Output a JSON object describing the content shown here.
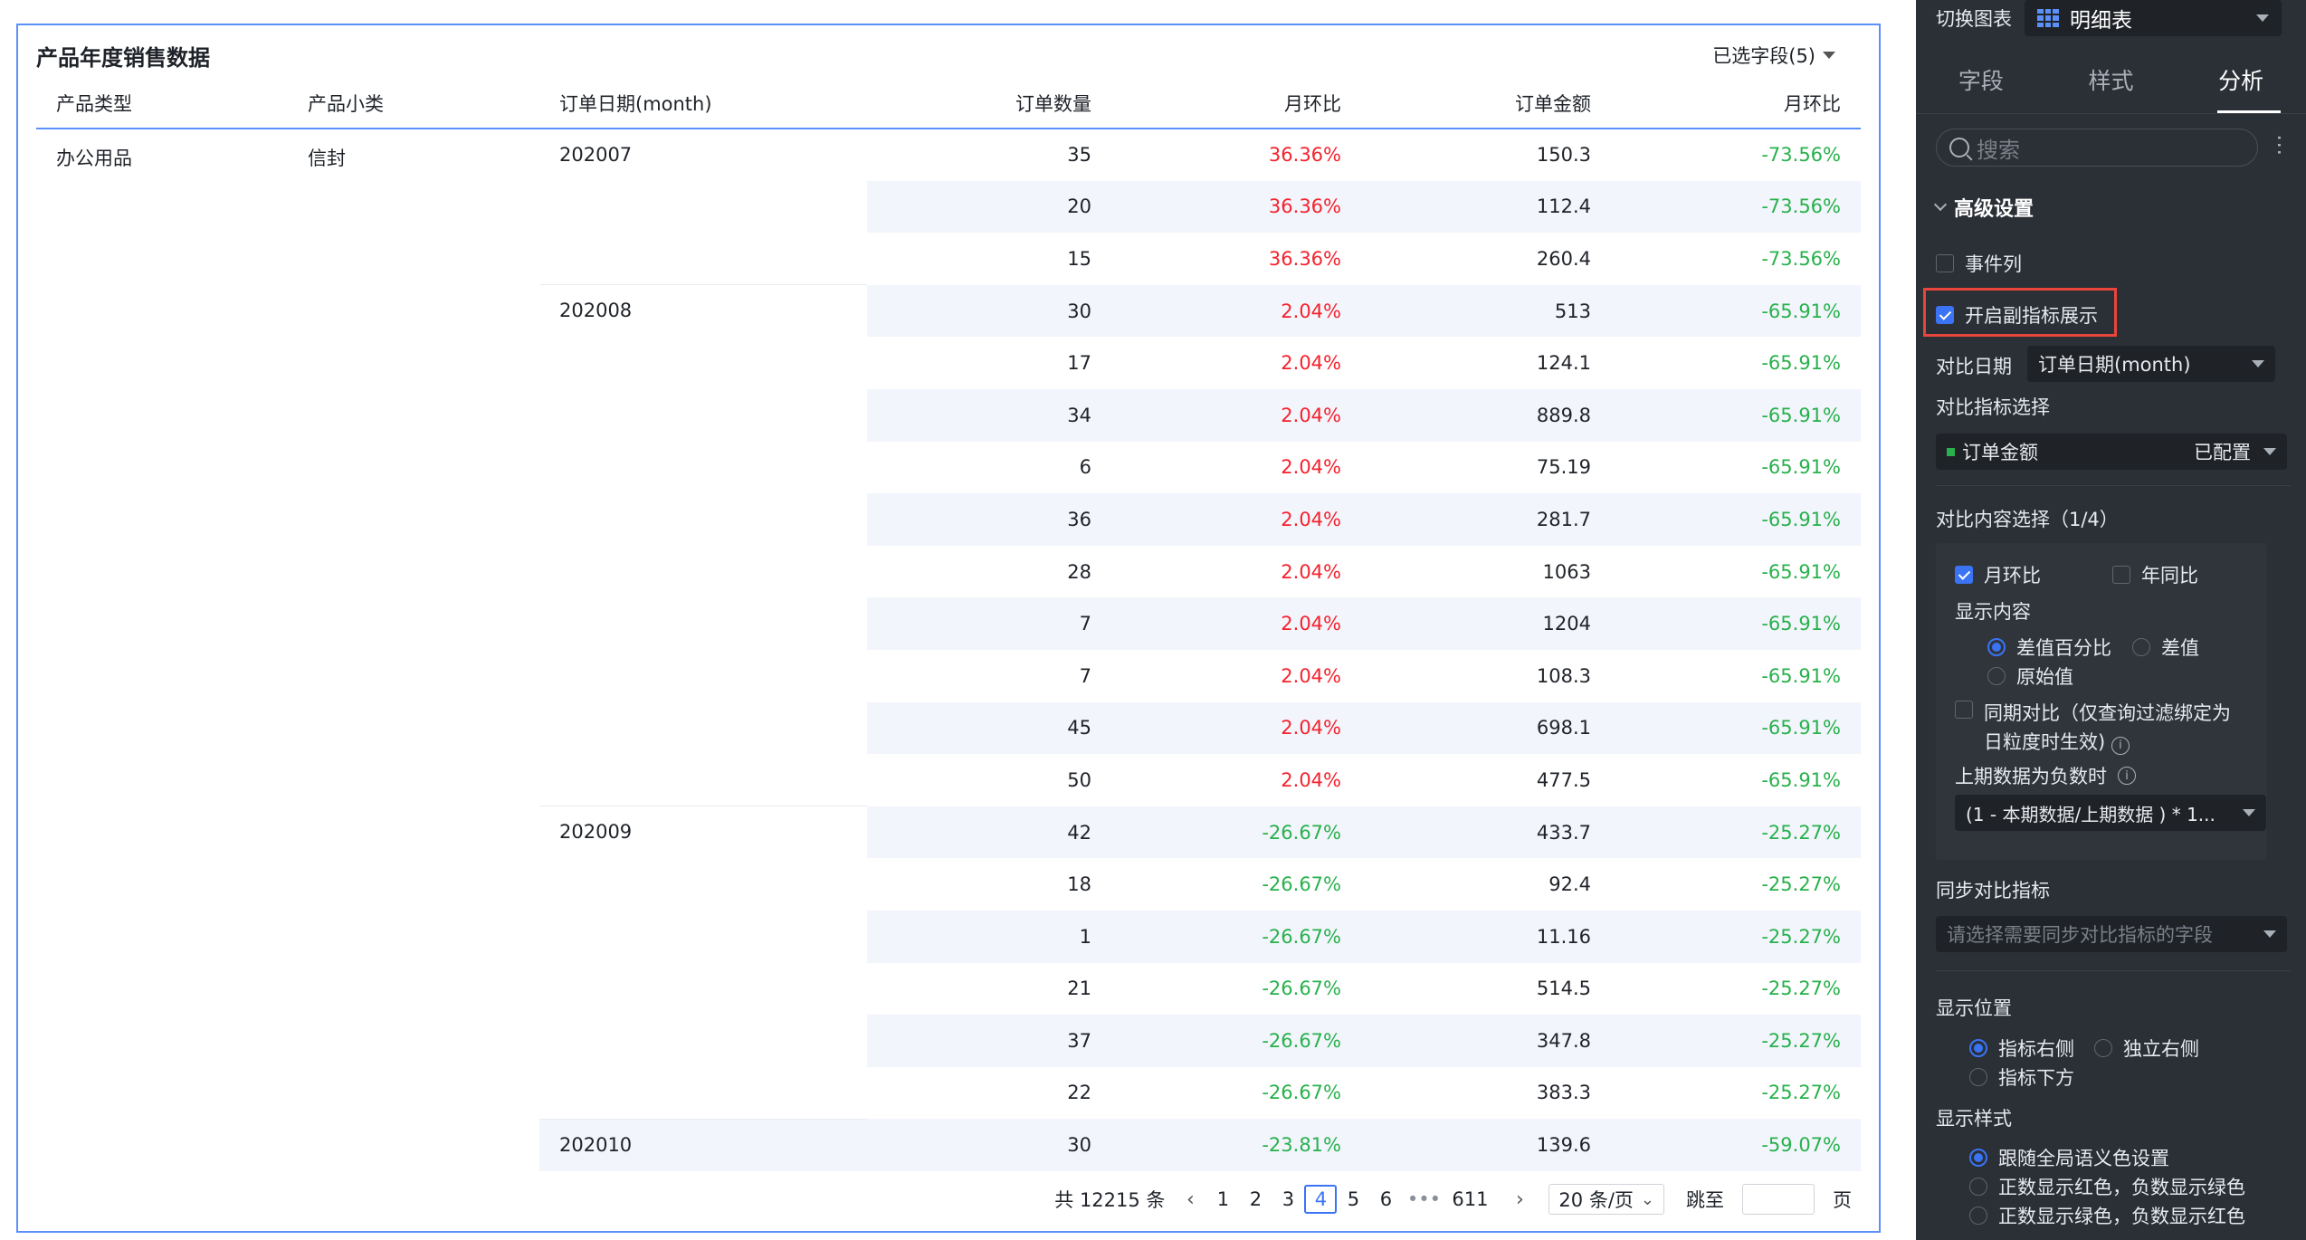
{
  "report": {
    "title": "产品年度销售数据",
    "field_select": "已选字段(5)",
    "columns": [
      "产品类型",
      "产品小类",
      "订单日期(month)",
      "订单数量",
      "月环比",
      "订单金额",
      "月环比"
    ],
    "group": {
      "type": "办公用品",
      "subtype": "信封"
    },
    "months": [
      "202007",
      "202008",
      "202009",
      "202010"
    ],
    "rows": [
      {
        "qty": "35",
        "mom1": "36.36%",
        "amt": "150.3",
        "mom2": "-73.56%"
      },
      {
        "qty": "20",
        "mom1": "36.36%",
        "amt": "112.4",
        "mom2": "-73.56%"
      },
      {
        "qty": "15",
        "mom1": "36.36%",
        "amt": "260.4",
        "mom2": "-73.56%"
      },
      {
        "qty": "30",
        "mom1": "2.04%",
        "amt": "513",
        "mom2": "-65.91%"
      },
      {
        "qty": "17",
        "mom1": "2.04%",
        "amt": "124.1",
        "mom2": "-65.91%"
      },
      {
        "qty": "34",
        "mom1": "2.04%",
        "amt": "889.8",
        "mom2": "-65.91%"
      },
      {
        "qty": "6",
        "mom1": "2.04%",
        "amt": "75.19",
        "mom2": "-65.91%"
      },
      {
        "qty": "36",
        "mom1": "2.04%",
        "amt": "281.7",
        "mom2": "-65.91%"
      },
      {
        "qty": "28",
        "mom1": "2.04%",
        "amt": "1063",
        "mom2": "-65.91%"
      },
      {
        "qty": "7",
        "mom1": "2.04%",
        "amt": "1204",
        "mom2": "-65.91%"
      },
      {
        "qty": "7",
        "mom1": "2.04%",
        "amt": "108.3",
        "mom2": "-65.91%"
      },
      {
        "qty": "45",
        "mom1": "2.04%",
        "amt": "698.1",
        "mom2": "-65.91%"
      },
      {
        "qty": "50",
        "mom1": "2.04%",
        "amt": "477.5",
        "mom2": "-65.91%"
      },
      {
        "qty": "42",
        "mom1": "-26.67%",
        "amt": "433.7",
        "mom2": "-25.27%"
      },
      {
        "qty": "18",
        "mom1": "-26.67%",
        "amt": "92.4",
        "mom2": "-25.27%"
      },
      {
        "qty": "1",
        "mom1": "-26.67%",
        "amt": "11.16",
        "mom2": "-25.27%"
      },
      {
        "qty": "21",
        "mom1": "-26.67%",
        "amt": "514.5",
        "mom2": "-25.27%"
      },
      {
        "qty": "37",
        "mom1": "-26.67%",
        "amt": "347.8",
        "mom2": "-25.27%"
      },
      {
        "qty": "22",
        "mom1": "-26.67%",
        "amt": "383.3",
        "mom2": "-25.27%"
      },
      {
        "qty": "30",
        "mom1": "-23.81%",
        "amt": "139.6",
        "mom2": "-59.07%"
      }
    ],
    "pager": {
      "total": "共 12215 条",
      "pages": [
        "1",
        "2",
        "3",
        "4",
        "5",
        "6"
      ],
      "active_page": "4",
      "ellipsis": "•••",
      "last": "611",
      "page_size": "20 条/页",
      "jump_label": "跳至",
      "page_suffix": "页"
    }
  },
  "colors": {
    "accent": "#3a74f5",
    "up": "#f5222d",
    "down": "#28b14c",
    "panel_bg": "#2b2f36"
  },
  "panel": {
    "switch_label": "切换图表",
    "chart_type": "明细表",
    "tabs": [
      "字段",
      "样式",
      "分析"
    ],
    "active_tab": "分析",
    "search_placeholder": "搜索",
    "section": "高级设置",
    "event_col": "事件列",
    "enable_sub": "开启副指标展示",
    "compare_date_label": "对比日期",
    "compare_date_value": "订单日期(month)",
    "metric_select_label": "对比指标选择",
    "metric_name": "订单金额",
    "metric_status": "已配置",
    "content_select_label": "对比内容选择（1/4）",
    "mom": "月环比",
    "yoy": "年同比",
    "display_content": "显示内容",
    "opt_diff_pct": "差值百分比",
    "opt_diff": "差值",
    "opt_raw": "原始值",
    "same_period": "同期对比（仅查询过滤绑定为",
    "same_period_2": "日粒度时生效)",
    "negative_label": "上期数据为负数时",
    "negative_value": "(1 - 本期数据/上期数据 ) * 1...",
    "sync_label": "同步对比指标",
    "sync_placeholder": "请选择需要同步对比指标的字段",
    "position_label": "显示位置",
    "pos_right": "指标右侧",
    "pos_indep": "独立右侧",
    "pos_below": "指标下方",
    "style_label": "显示样式",
    "style_global": "跟随全局语义色设置",
    "style_red": "正数显示红色，负数显示绿色",
    "style_green": "正数显示绿色，负数显示红色"
  }
}
